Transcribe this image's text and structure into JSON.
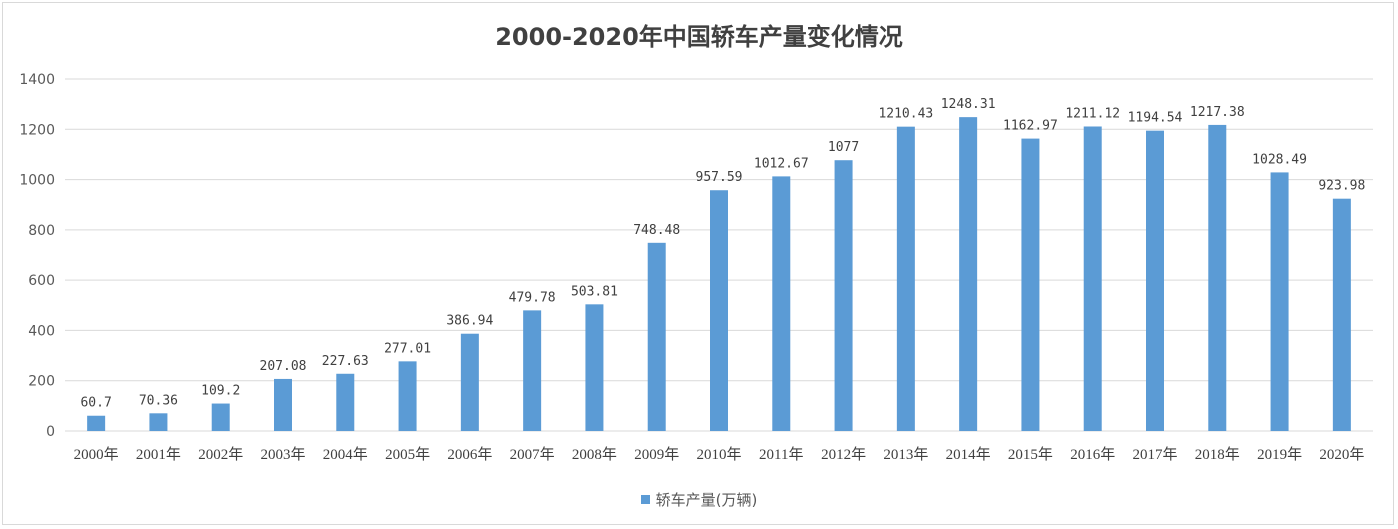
{
  "chart_data": {
    "type": "bar",
    "title": "2000-2020年中国轿车产量变化情况",
    "categories": [
      "2000年",
      "2001年",
      "2002年",
      "2003年",
      "2004年",
      "2005年",
      "2006年",
      "2007年",
      "2008年",
      "2009年",
      "2010年",
      "2011年",
      "2012年",
      "2013年",
      "2014年",
      "2015年",
      "2016年",
      "2017年",
      "2018年",
      "2019年",
      "2020年"
    ],
    "series": [
      {
        "name": "轿车产量(万辆)",
        "values": [
          60.7,
          70.36,
          109.2,
          207.08,
          227.63,
          277.01,
          386.94,
          479.78,
          503.81,
          748.48,
          957.59,
          1012.67,
          1077,
          1210.43,
          1248.31,
          1162.97,
          1211.12,
          1194.54,
          1217.38,
          1028.49,
          923.98
        ],
        "labels": [
          "60.7",
          "70.36",
          "109.2",
          "207.08",
          "227.63",
          "277.01",
          "386.94",
          "479.78",
          "503.81",
          "748.48",
          "957.59",
          "1012.67",
          "1077",
          "1210.43",
          "1248.31",
          "1162.97",
          "1211.12",
          "1194.54",
          "1217.38",
          "1028.49",
          "923.98"
        ],
        "color": "#5b9bd5"
      }
    ],
    "ylim": [
      0,
      1400
    ],
    "yticks": [
      "0",
      "200",
      "400",
      "600",
      "800",
      "1000",
      "1200",
      "1400"
    ],
    "grid": true,
    "legend": "bottom-center"
  }
}
